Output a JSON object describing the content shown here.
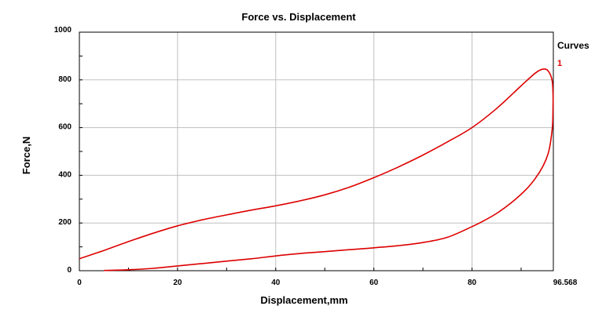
{
  "chart_data": {
    "type": "line",
    "title": "Force vs. Displacement",
    "xlabel": "Displacement,mm",
    "ylabel": "Force,N",
    "xlim": [
      0,
      96.568
    ],
    "ylim": [
      0,
      1000
    ],
    "x_ticks": [
      0,
      20,
      40,
      60,
      80
    ],
    "x_end_label": "96.568",
    "y_ticks": [
      0,
      200,
      400,
      600,
      800,
      1000
    ],
    "grid": true,
    "legend_title": "Curves",
    "legend_position": "right",
    "series": [
      {
        "name": "1",
        "color": "#dd0000",
        "x": [
          0,
          5,
          10,
          15,
          20,
          25,
          30,
          35,
          40,
          45,
          50,
          55,
          60,
          65,
          70,
          75,
          80,
          85,
          90,
          93,
          94.5,
          95.5,
          96.3,
          96.5,
          96.5,
          96.4,
          96,
          95.5,
          94.5,
          93,
          91,
          88,
          85,
          82,
          80,
          75,
          70,
          65,
          60,
          55,
          50,
          45,
          40,
          35,
          30,
          25,
          20,
          15,
          10,
          5
        ],
        "y": [
          50,
          85,
          122,
          157,
          188,
          213,
          234,
          254,
          272,
          293,
          318,
          350,
          390,
          435,
          485,
          540,
          600,
          680,
          775,
          830,
          845,
          838,
          800,
          740,
          690,
          610,
          540,
          490,
          440,
          390,
          340,
          285,
          240,
          205,
          185,
          140,
          118,
          105,
          96,
          88,
          80,
          72,
          62,
          50,
          40,
          30,
          20,
          10,
          4,
          1
        ]
      }
    ]
  }
}
